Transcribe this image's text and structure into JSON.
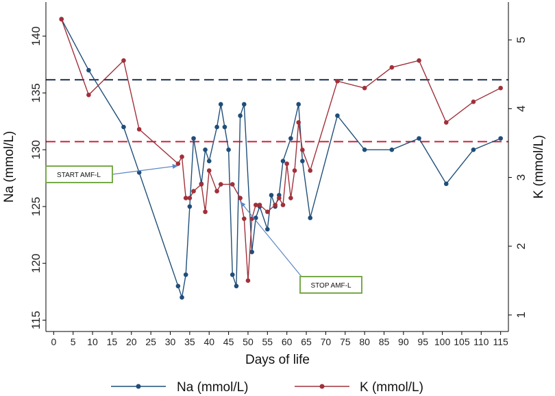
{
  "chart_data": {
    "type": "line",
    "xlabel": "Days of life",
    "ylabel_left": "Na (mmol/L)",
    "ylabel_right": "K (mmol/L)",
    "xlim": [
      -2,
      117
    ],
    "ylim_left": [
      114,
      143
    ],
    "ylim_right": [
      0.76,
      5.55
    ],
    "x_ticks": [
      0,
      5,
      10,
      15,
      20,
      25,
      30,
      35,
      40,
      45,
      50,
      55,
      60,
      65,
      70,
      75,
      80,
      85,
      90,
      95,
      100,
      105,
      110,
      115
    ],
    "y_ticks_left": [
      115,
      120,
      125,
      130,
      135,
      140
    ],
    "y_ticks_right": [
      1,
      2,
      3,
      4,
      5
    ],
    "colors": {
      "na": "#1f4e79",
      "k": "#a0303a",
      "ref_na": "#1a2a52",
      "ref_k": "#c8203a",
      "annotation_border": "#77a94b",
      "arrow": "#5b86c5"
    },
    "reference_lines": [
      {
        "axis": "right",
        "value": 4.42,
        "color": "#1a2a52"
      },
      {
        "axis": "right",
        "value": 3.52,
        "color": "#c8203a"
      }
    ],
    "series": [
      {
        "name": "Na (mmol/L)",
        "axis": "left",
        "x": [
          2,
          9,
          18,
          22,
          32,
          33,
          34,
          35,
          36,
          38,
          39,
          40,
          42,
          43,
          44,
          45,
          46,
          47,
          48,
          49,
          51,
          52,
          53,
          55,
          56,
          57,
          58,
          59,
          61,
          63,
          64,
          66,
          73,
          80,
          87,
          94,
          101,
          108,
          115
        ],
        "y": [
          141.5,
          137,
          132,
          128,
          118,
          117,
          119,
          125,
          131,
          127,
          130,
          129,
          132,
          134,
          132,
          130,
          119,
          118,
          133,
          134,
          121,
          124,
          125,
          123,
          126,
          125,
          126,
          129,
          131,
          134,
          129,
          124,
          133,
          130,
          130,
          131,
          127,
          130,
          131
        ]
      },
      {
        "name": "K (mmol/L)",
        "axis": "right",
        "x": [
          2,
          9,
          18,
          22,
          32,
          33,
          34,
          35,
          36,
          38,
          39,
          40,
          42,
          43,
          46,
          48,
          49,
          50,
          51,
          52,
          53,
          55,
          57,
          58,
          59,
          60,
          61,
          62,
          63,
          64,
          66,
          73,
          80,
          87,
          94,
          101,
          108,
          115
        ],
        "y": [
          5.3,
          4.2,
          4.7,
          3.7,
          3.2,
          3.3,
          2.7,
          2.7,
          2.8,
          2.9,
          2.5,
          3.1,
          2.8,
          2.9,
          2.9,
          2.7,
          2.4,
          1.5,
          2.4,
          2.6,
          2.6,
          2.5,
          2.6,
          2.7,
          2.6,
          3.2,
          2.7,
          3.1,
          3.8,
          3.4,
          3.1,
          4.4,
          4.3,
          4.6,
          4.7,
          3.8,
          4.1,
          4.3
        ]
      }
    ],
    "annotations": [
      {
        "text": "START AMF-L",
        "arrow_to_x": 32,
        "arrow_to_y_right": 3.2
      },
      {
        "text": "STOP AMF-L",
        "arrow_to_x": 48,
        "arrow_to_y_right": 2.7
      }
    ],
    "legend": {
      "placement": "bottom",
      "entries": [
        "Na (mmol/L)",
        "K (mmol/L)"
      ]
    }
  }
}
